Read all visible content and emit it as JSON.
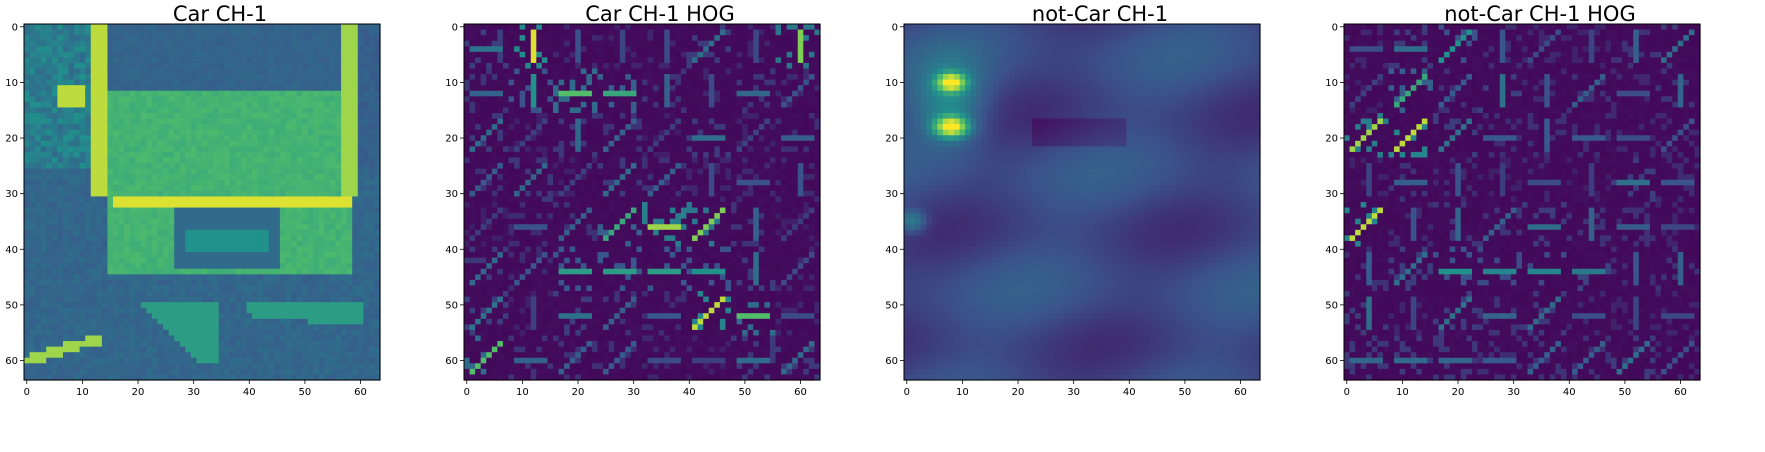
{
  "colormap": [
    "#440154",
    "#3b528b",
    "#21918c",
    "#5ec962",
    "#fde725"
  ],
  "chart_data": [
    {
      "type": "heatmap",
      "title": "Car CH-1",
      "image_size": [
        64,
        64
      ],
      "x_ticks": [
        0,
        10,
        20,
        30,
        40,
        50,
        60
      ],
      "y_ticks": [
        0,
        10,
        20,
        30,
        40,
        50,
        60
      ],
      "xlim": [
        -0.5,
        63.5
      ],
      "ylim": [
        63.5,
        -0.5
      ],
      "content": "grayscale car rear image, channel 1"
    },
    {
      "type": "heatmap",
      "title": "Car CH-1 HOG",
      "image_size": [
        64,
        64
      ],
      "x_ticks": [
        0,
        10,
        20,
        30,
        40,
        50,
        60
      ],
      "y_ticks": [
        0,
        10,
        20,
        30,
        40,
        50,
        60
      ],
      "xlim": [
        -0.5,
        63.5
      ],
      "ylim": [
        63.5,
        -0.5
      ],
      "content": "HOG visualization of car channel 1"
    },
    {
      "type": "heatmap",
      "title": "not-Car CH-1",
      "image_size": [
        64,
        64
      ],
      "x_ticks": [
        0,
        10,
        20,
        30,
        40,
        50,
        60
      ],
      "y_ticks": [
        0,
        10,
        20,
        30,
        40,
        50,
        60
      ],
      "xlim": [
        -0.5,
        63.5
      ],
      "ylim": [
        63.5,
        -0.5
      ],
      "content": "non-car image, channel 1"
    },
    {
      "type": "heatmap",
      "title": "not-Car CH-1 HOG",
      "image_size": [
        64,
        64
      ],
      "x_ticks": [
        0,
        10,
        20,
        30,
        40,
        50,
        60
      ],
      "y_ticks": [
        0,
        10,
        20,
        30,
        40,
        50,
        60
      ],
      "xlim": [
        -0.5,
        63.5
      ],
      "ylim": [
        63.5,
        -0.5
      ],
      "content": "HOG visualization of non-car channel 1"
    }
  ]
}
